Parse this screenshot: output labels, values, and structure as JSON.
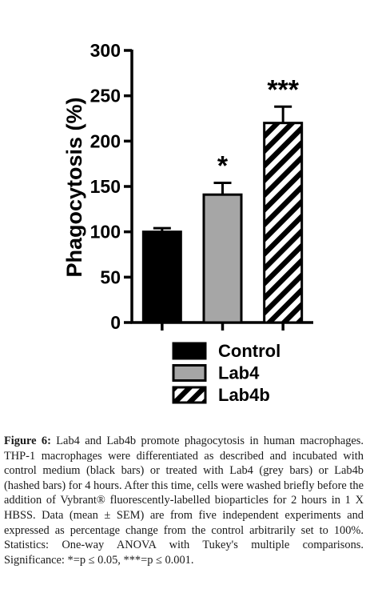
{
  "chart_data": {
    "type": "bar",
    "ylabel": "Phagocytosis (%)",
    "ylim": [
      0,
      300
    ],
    "yticks": [
      0,
      50,
      100,
      150,
      200,
      250,
      300
    ],
    "grid": false,
    "legend_position": "bottom",
    "series": [
      {
        "name": "Control",
        "value": 100,
        "sem": 4,
        "significance": "",
        "fill": "#000000",
        "pattern": "solid"
      },
      {
        "name": "Lab4",
        "value": 141,
        "sem": 13,
        "significance": "*",
        "fill": "#a6a6a6",
        "pattern": "solid"
      },
      {
        "name": "Lab4b",
        "value": 220,
        "sem": 18,
        "significance": "***",
        "fill": "#ffffff",
        "pattern": "hatched"
      }
    ]
  },
  "caption": {
    "label": "Figure 6:",
    "text": "Lab4 and Lab4b promote phagocytosis in human macrophages. THP-1 macrophages were differentiated as described and incubated with control medium (black bars) or treated with Lab4 (grey bars) or Lab4b (hashed bars) for 4 hours. After this time, cells were washed briefly before the addition of Vybrant® fluorescently-labelled bioparticles for 2 hours in 1 X HBSS. Data (mean ± SEM) are from five independent experiments and expressed as percentage change from the control arbitrarily set to 100%. Statistics: One-way ANOVA with Tukey's multiple comparisons. Significance: *=p ≤ 0.05, ***=p ≤ 0.001."
  }
}
